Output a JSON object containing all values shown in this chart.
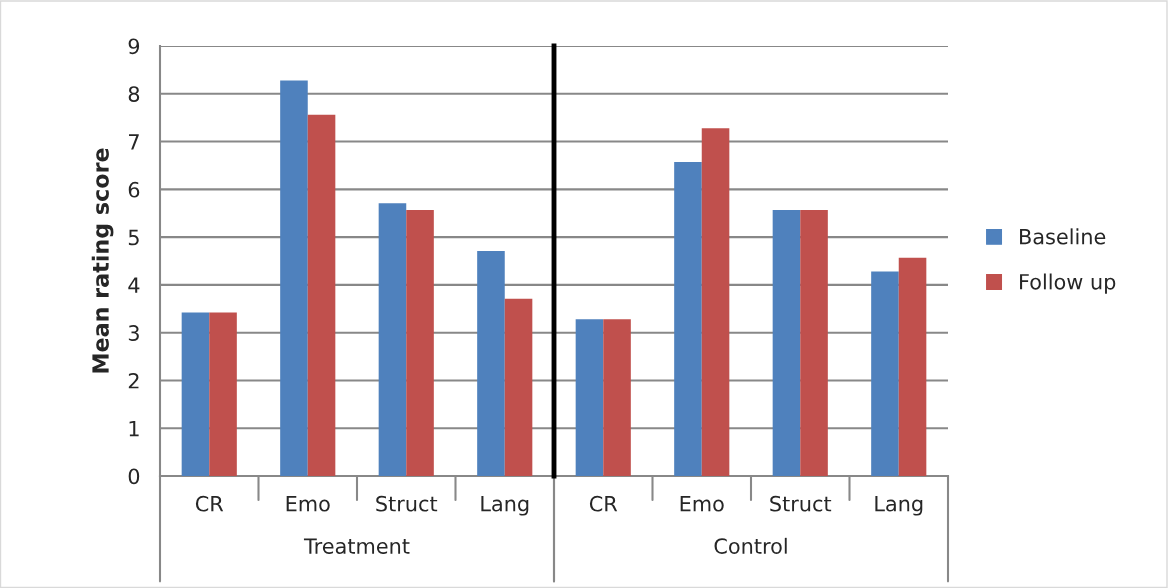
{
  "chart_data": [
    {
      "type": "bar",
      "ylabel": "Mean rating score",
      "xlabel": "Treatment",
      "categories": [
        "CR",
        "Emo",
        "Struct",
        "Lang"
      ],
      "series": [
        {
          "name": "Baseline",
          "color": "#4f81bd",
          "values": [
            3.42,
            8.28,
            5.71,
            4.71
          ]
        },
        {
          "name": "Follow up",
          "color": "#c0504d",
          "values": [
            3.42,
            7.56,
            5.57,
            3.71
          ]
        }
      ],
      "ylim": [
        0,
        9
      ],
      "yticks": [
        0,
        1,
        2,
        3,
        4,
        5,
        6,
        7,
        8,
        9
      ],
      "grid": "y",
      "legend": "right"
    },
    {
      "type": "bar",
      "xlabel": "Control",
      "categories": [
        "CR",
        "Emo",
        "Struct",
        "Lang"
      ],
      "series": [
        {
          "color": "#4f81bd",
          "values": [
            3.28,
            6.57,
            5.57,
            4.28
          ]
        },
        {
          "color": "#c0504d",
          "values": [
            3.28,
            7.28,
            5.57,
            4.57
          ]
        }
      ],
      "ylim": [
        0,
        9
      ],
      "yticks": [
        0,
        1,
        2,
        3,
        4,
        5,
        6,
        7,
        8,
        9
      ],
      "grid": "y",
      "tick_labels": "x"
    }
  ]
}
